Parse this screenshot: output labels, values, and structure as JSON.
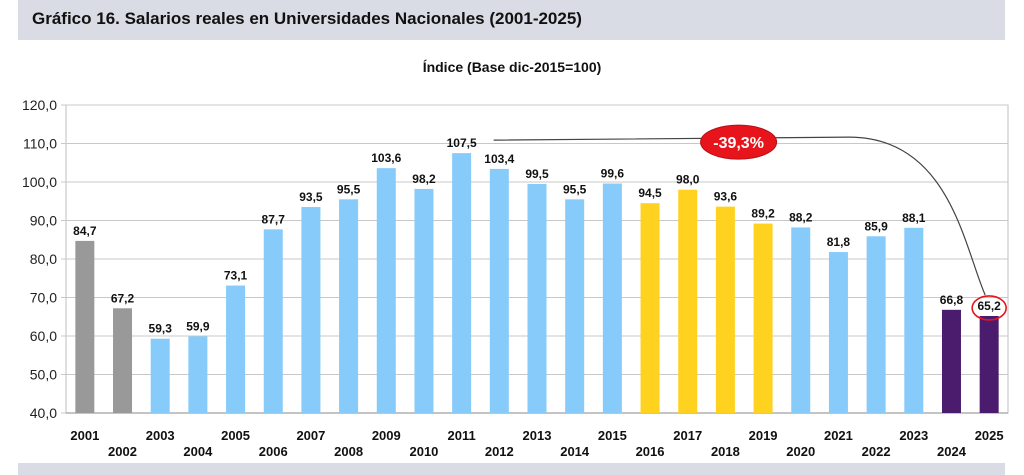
{
  "header": {
    "title": "Gráfico 16. Salarios reales en Universidades Nacionales (2001-2025)"
  },
  "chart_data": {
    "type": "bar",
    "title": "Gráfico 16. Salarios reales en Universidades Nacionales (2001-2025)",
    "subtitle": "Índice (Base dic-2015=100)",
    "xlabel": "",
    "ylabel": "",
    "ylim": [
      40,
      120
    ],
    "yticks": [
      "40,0",
      "50,0",
      "60,0",
      "70,0",
      "80,0",
      "90,0",
      "100,0",
      "110,0",
      "120,0"
    ],
    "ytick_values": [
      40,
      50,
      60,
      70,
      80,
      90,
      100,
      110,
      120
    ],
    "grid": true,
    "categories": [
      "2001",
      "2002",
      "2003",
      "2004",
      "2005",
      "2006",
      "2007",
      "2008",
      "2009",
      "2010",
      "2011",
      "2012",
      "2013",
      "2014",
      "2015",
      "2016",
      "2017",
      "2018",
      "2019",
      "2020",
      "2021",
      "2022",
      "2023",
      "2024",
      "2025"
    ],
    "values": [
      84.7,
      67.2,
      59.3,
      59.9,
      73.1,
      87.7,
      93.5,
      95.5,
      103.6,
      98.2,
      107.5,
      103.4,
      99.5,
      95.5,
      99.6,
      94.5,
      98.0,
      93.6,
      89.2,
      88.2,
      81.8,
      85.9,
      88.1,
      66.8,
      65.2
    ],
    "value_labels": [
      "84,7",
      "67,2",
      "59,3",
      "59,9",
      "73,1",
      "87,7",
      "93,5",
      "95,5",
      "103,6",
      "98,2",
      "107,5",
      "103,4",
      "99,5",
      "95,5",
      "99,6",
      "94,5",
      "98,0",
      "93,6",
      "89,2",
      "88,2",
      "81,8",
      "85,9",
      "88,1",
      "66,8",
      "65,2"
    ],
    "bar_groups": [
      "gray",
      "gray",
      "blue",
      "blue",
      "blue",
      "blue",
      "blue",
      "blue",
      "blue",
      "blue",
      "blue",
      "blue",
      "blue",
      "blue",
      "blue",
      "yellow",
      "yellow",
      "yellow",
      "yellow",
      "blue",
      "blue",
      "blue",
      "blue",
      "purple",
      "purple"
    ],
    "colors": {
      "gray": "#999999",
      "blue": "#87cbfa",
      "yellow": "#ffd21f",
      "purple": "#4b1c6e",
      "annotation": "#e8141b"
    },
    "annotation": {
      "text": "-39,3%",
      "from_category": "2011",
      "to_category": "2025"
    }
  }
}
